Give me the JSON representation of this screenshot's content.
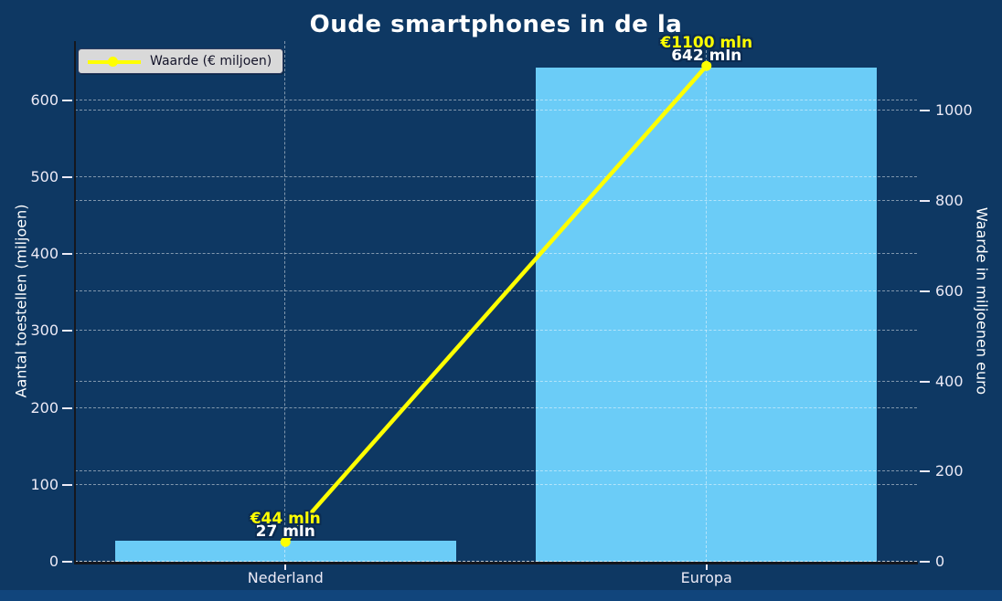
{
  "chart_data": {
    "type": "bar+line combo",
    "title": "Oude smartphones in de la",
    "categories": [
      "Nederland",
      "Europa"
    ],
    "series": [
      {
        "name": "Aantal toestellen",
        "type": "bar",
        "axis": "left",
        "values": [
          27,
          642
        ],
        "point_labels": [
          "27 mln",
          "642 mln"
        ]
      },
      {
        "name": "Waarde (€ miljoen)",
        "type": "line",
        "axis": "right",
        "values": [
          44,
          1100
        ],
        "point_labels": [
          "€44 mln",
          "€1100 mln"
        ]
      }
    ],
    "left_axis": {
      "label": "Aantal toestellen (miljoen)",
      "ticks": [
        0,
        100,
        200,
        300,
        400,
        500,
        600
      ],
      "min": 0,
      "max": 677
    },
    "right_axis": {
      "label": "Waarde in miljoenen euro",
      "ticks": [
        0,
        200,
        400,
        600,
        800,
        1000
      ],
      "min": 0,
      "max": 1155
    },
    "legend": {
      "position": "upper-left",
      "entries": [
        {
          "label": "Waarde (€ miljoen)",
          "marker": "line-circle"
        }
      ]
    },
    "grid": {
      "visible": true,
      "style": "dashed",
      "both_axes": true
    }
  },
  "colors": {
    "background": "#0e3863",
    "footer_strip": "#11457c",
    "bar_fill": "#6bccf7",
    "line_color": "#ffff00",
    "grid_color": "rgba(255,255,255,0.48)",
    "tick_label_color": "#eceaf6",
    "text_color": "#ffffff",
    "spine_color": "#15171e",
    "legend_background": "#d9d9d9",
    "legend_text_color": "#15152a",
    "label_outline_color": "#0b2c52"
  }
}
